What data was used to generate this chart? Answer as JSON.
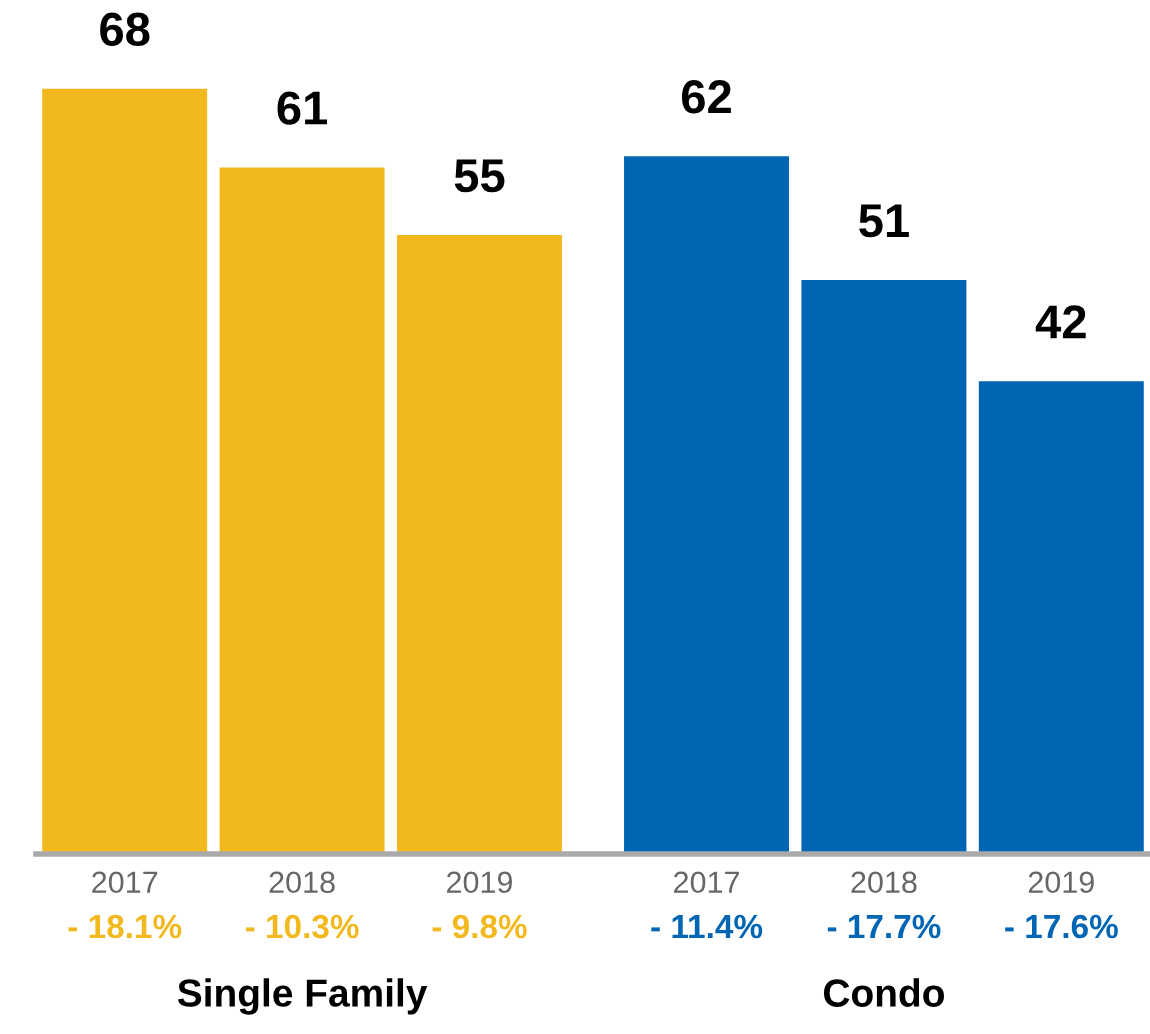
{
  "chart_data": {
    "type": "bar",
    "categories": [
      "2017",
      "2018",
      "2019",
      "2017",
      "2018",
      "2019"
    ],
    "series": [
      {
        "color": "#f2b91e",
        "values": [
          68,
          61,
          55,
          null,
          null,
          null
        ]
      },
      {
        "color": "#0066b3",
        "values": [
          null,
          null,
          null,
          62,
          51,
          42
        ]
      }
    ],
    "data_labels": true,
    "annotations": [
      "- 18.1%",
      "- 10.3%",
      "- 9.8%",
      "- 11.4%",
      "- 17.7%",
      "- 17.6%",
      "Single Family",
      "Condo"
    ],
    "grid": false,
    "legend": false
  }
}
